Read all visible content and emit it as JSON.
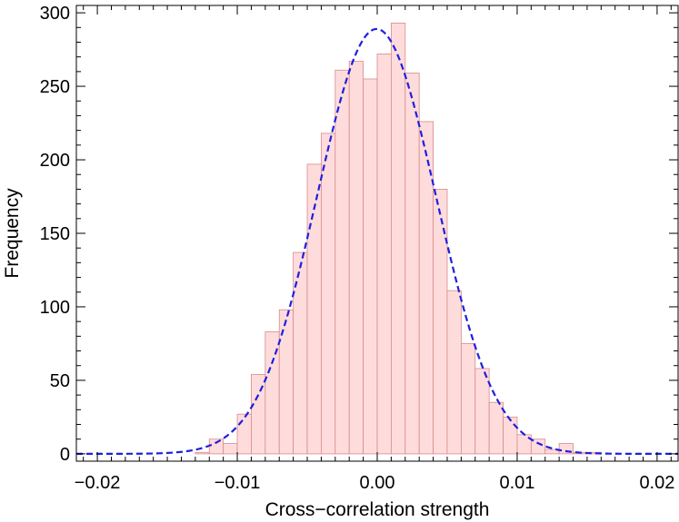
{
  "chart_data": {
    "type": "bar",
    "title": "",
    "xlabel": "Cross−correlation strength",
    "ylabel": "Frequency",
    "xlim": [
      -0.0215,
      0.0215
    ],
    "ylim": [
      -5,
      305
    ],
    "x_ticks": [
      -0.02,
      -0.01,
      0.0,
      0.01,
      0.02
    ],
    "x_tick_labels": [
      "−0.02",
      "−0.01",
      "0.00",
      "0.01",
      "0.02"
    ],
    "y_ticks": [
      0,
      50,
      100,
      150,
      200,
      250,
      300
    ],
    "y_tick_labels": [
      "0",
      "50",
      "100",
      "150",
      "200",
      "250",
      "300"
    ],
    "grid": false,
    "bin_width": 0.001,
    "bins": [
      {
        "x0": -0.013,
        "x1": -0.012,
        "value": 1
      },
      {
        "x0": -0.012,
        "x1": -0.011,
        "value": 10
      },
      {
        "x0": -0.011,
        "x1": -0.01,
        "value": 7
      },
      {
        "x0": -0.01,
        "x1": -0.009,
        "value": 27
      },
      {
        "x0": -0.009,
        "x1": -0.008,
        "value": 54
      },
      {
        "x0": -0.008,
        "x1": -0.007,
        "value": 83
      },
      {
        "x0": -0.007,
        "x1": -0.006,
        "value": 98
      },
      {
        "x0": -0.006,
        "x1": -0.005,
        "value": 137
      },
      {
        "x0": -0.005,
        "x1": -0.004,
        "value": 197
      },
      {
        "x0": -0.004,
        "x1": -0.003,
        "value": 218
      },
      {
        "x0": -0.003,
        "x1": -0.002,
        "value": 261
      },
      {
        "x0": -0.002,
        "x1": -0.001,
        "value": 267
      },
      {
        "x0": -0.001,
        "x1": 0.0,
        "value": 255
      },
      {
        "x0": 0.0,
        "x1": 0.001,
        "value": 272
      },
      {
        "x0": 0.001,
        "x1": 0.002,
        "value": 293
      },
      {
        "x0": 0.002,
        "x1": 0.003,
        "value": 259
      },
      {
        "x0": 0.003,
        "x1": 0.004,
        "value": 226
      },
      {
        "x0": 0.004,
        "x1": 0.005,
        "value": 180
      },
      {
        "x0": 0.005,
        "x1": 0.006,
        "value": 111
      },
      {
        "x0": 0.006,
        "x1": 0.007,
        "value": 75
      },
      {
        "x0": 0.007,
        "x1": 0.008,
        "value": 58
      },
      {
        "x0": 0.008,
        "x1": 0.009,
        "value": 35
      },
      {
        "x0": 0.009,
        "x1": 0.01,
        "value": 25
      },
      {
        "x0": 0.01,
        "x1": 0.011,
        "value": 13
      },
      {
        "x0": 0.011,
        "x1": 0.012,
        "value": 10
      },
      {
        "x0": 0.012,
        "x1": 0.013,
        "value": 3
      },
      {
        "x0": 0.013,
        "x1": 0.014,
        "value": 7
      },
      {
        "x0": 0.014,
        "x1": 0.015,
        "value": 1
      },
      {
        "x0": 0.015,
        "x1": 0.016,
        "value": 1
      }
    ],
    "fit_curve": {
      "type": "gaussian",
      "mean": -5e-05,
      "sigma": 0.00425,
      "peak": 289,
      "style": "dashed"
    },
    "colors": {
      "bar_fill": "#ffdcdc",
      "bar_edge": "#d88a8a",
      "curve": "#1f1fe0",
      "axis": "#000000"
    }
  }
}
